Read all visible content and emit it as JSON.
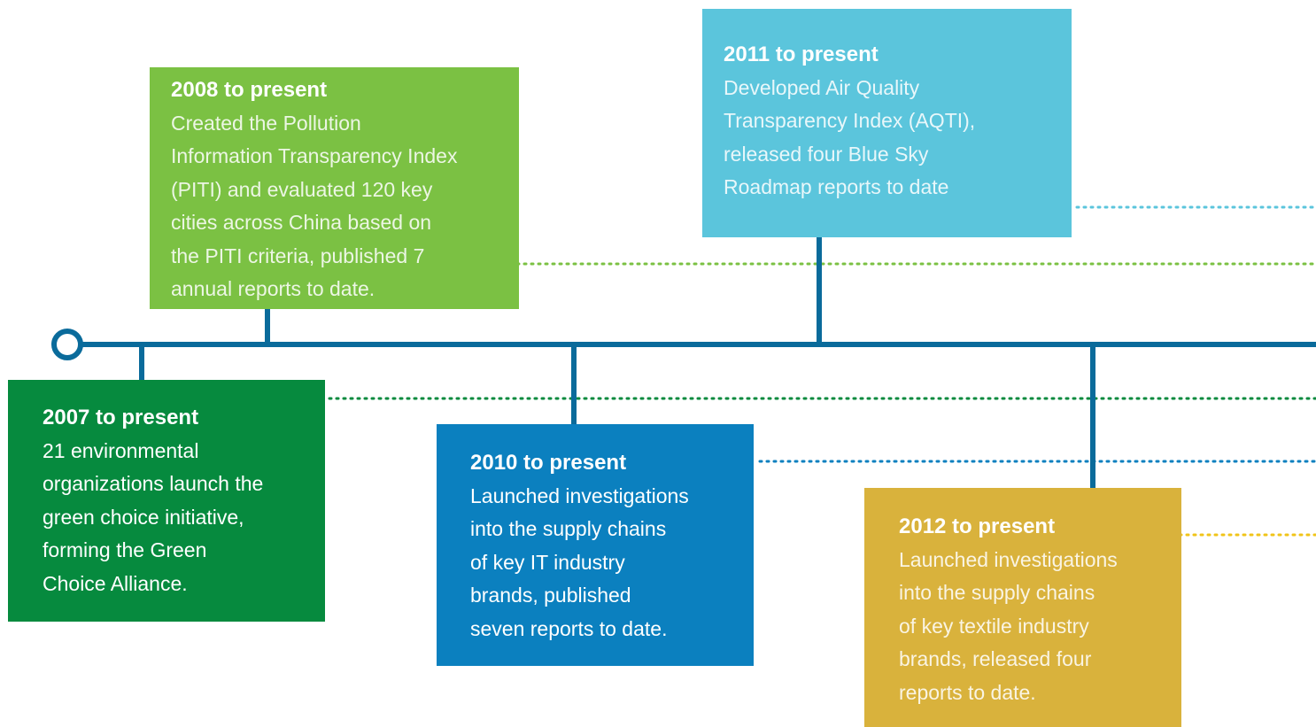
{
  "events": [
    {
      "title": "2008 to present",
      "lines": [
        "Created the Pollution",
        "Information Transparency Index",
        "(PITI) and evaluated 120 key",
        "cities across China based on",
        "the PITI criteria, published 7",
        "annual reports to date."
      ]
    },
    {
      "title": "2011 to present",
      "lines": [
        "Developed Air Quality",
        "Transparency Index (AQTI),",
        "released four Blue Sky",
        "Roadmap reports to date"
      ]
    },
    {
      "title": "2007 to present",
      "lines": [
        "21 environmental",
        "organizations launch the",
        "green choice initiative,",
        "forming the Green",
        "Choice Alliance."
      ]
    },
    {
      "title": "2010 to present",
      "lines": [
        "Launched investigations",
        "into the supply chains",
        "of key IT industry",
        "brands, published",
        "seven reports to date."
      ]
    },
    {
      "title": "2012 to present",
      "lines": [
        "Launched investigations",
        "into the supply chains",
        "of key textile industry",
        "brands, released four",
        "reports to date."
      ]
    }
  ]
}
